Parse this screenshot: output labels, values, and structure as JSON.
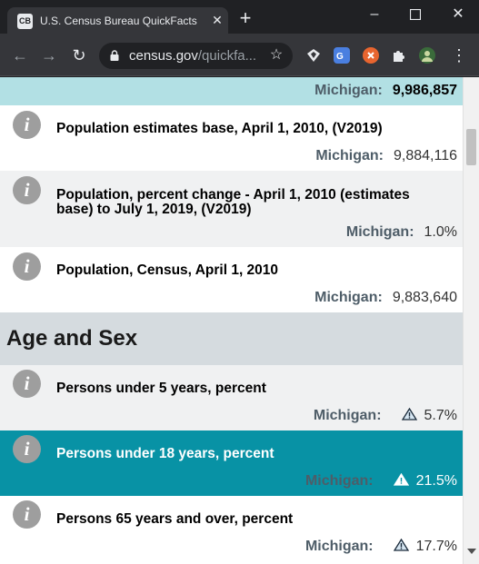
{
  "browser": {
    "tab_favicon": "CB",
    "tab_title": "U.S. Census Bureau QuickFacts",
    "url_host": "census.gov",
    "url_path": "/quickfa..."
  },
  "rows": [
    {
      "label": "",
      "state": "Michigan:",
      "value": "9,986,857",
      "bg": "#b2e0e4"
    },
    {
      "label": "Population estimates base, April 1, 2010, (V2019)",
      "state": "Michigan:",
      "value": "9,884,116",
      "bg": "#ffffff"
    },
    {
      "label": "Population, percent change - April 1, 2010 (estimates base) to July 1, 2019, (V2019)",
      "state": "Michigan:",
      "value": "1.0%",
      "bg": "#f0f1f2"
    },
    {
      "label": "Population, Census, April 1, 2010",
      "state": "Michigan:",
      "value": "9,883,640",
      "bg": "#ffffff"
    },
    {
      "label": "Persons under 5 years, percent",
      "state": "Michigan:",
      "value": "5.7%",
      "bg": "#f0f1f2"
    },
    {
      "label": "Persons under 18 years, percent",
      "state": "Michigan:",
      "value": "21.5%",
      "bg": "#0892a5"
    },
    {
      "label": "Persons 65 years and over, percent",
      "state": "Michigan:",
      "value": "17.7%",
      "bg": "#ffffff"
    }
  ],
  "section": {
    "title": "Age and Sex"
  },
  "info_glyph": "i"
}
